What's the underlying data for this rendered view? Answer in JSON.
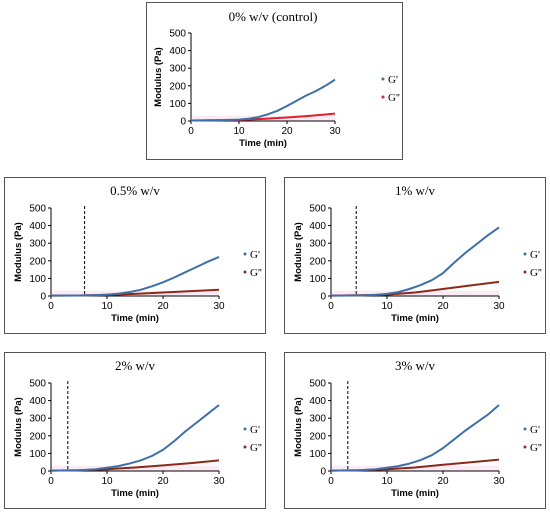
{
  "chart_data": [
    {
      "type": "line",
      "title": "0% w/v (control)",
      "xlabel": "Time (min)",
      "ylabel": "Modulus (Pa)",
      "xlim": [
        0,
        30
      ],
      "ylim": [
        0,
        500
      ],
      "xticks": [
        "0",
        "10",
        "20",
        "30"
      ],
      "yticks": [
        "0",
        "100",
        "200",
        "300",
        "400",
        "500"
      ],
      "gel_point": null,
      "legend_position": "right",
      "series": [
        {
          "name": "G'",
          "color": "#3e6fa8",
          "x": [
            0,
            5,
            8,
            10,
            12,
            14,
            16,
            18,
            20,
            22,
            24,
            26,
            28,
            30
          ],
          "values": [
            3,
            4,
            6,
            8,
            13,
            22,
            38,
            58,
            85,
            115,
            145,
            170,
            200,
            235
          ]
        },
        {
          "name": "G''",
          "color": "#e0202a",
          "x": [
            0,
            5,
            10,
            15,
            20,
            25,
            30
          ],
          "values": [
            3,
            4,
            6,
            12,
            20,
            30,
            42
          ]
        }
      ]
    },
    {
      "type": "line",
      "title": "0.5% w/v",
      "xlabel": "Time (min)",
      "ylabel": "Modulus (Pa)",
      "xlim": [
        0,
        30
      ],
      "ylim": [
        0,
        500
      ],
      "xticks": [
        "0",
        "10",
        "20",
        "30"
      ],
      "yticks": [
        "0",
        "100",
        "200",
        "300",
        "400",
        "500"
      ],
      "gel_point": 6,
      "legend_position": "right",
      "series": [
        {
          "name": "G'",
          "color": "#3e6fa8",
          "x": [
            0,
            5,
            8,
            10,
            12,
            14,
            16,
            18,
            20,
            22,
            24,
            26,
            28,
            30
          ],
          "values": [
            2,
            3,
            5,
            8,
            13,
            22,
            35,
            55,
            78,
            105,
            135,
            165,
            195,
            222
          ]
        },
        {
          "name": "G''",
          "color": "#8b2a1a",
          "x": [
            0,
            5,
            10,
            15,
            20,
            25,
            30
          ],
          "values": [
            2,
            3,
            6,
            12,
            20,
            28,
            36
          ]
        }
      ]
    },
    {
      "type": "line",
      "title": "1% w/v",
      "xlabel": "Time (min)",
      "ylabel": "Modulus (Pa)",
      "xlim": [
        0,
        30
      ],
      "ylim": [
        0,
        500
      ],
      "xticks": [
        "0",
        "10",
        "20",
        "30"
      ],
      "yticks": [
        "0",
        "100",
        "200",
        "300",
        "400",
        "500"
      ],
      "gel_point": 4.5,
      "legend_position": "right",
      "series": [
        {
          "name": "G'",
          "color": "#3e6fa8",
          "x": [
            0,
            5,
            8,
            10,
            12,
            14,
            16,
            18,
            20,
            22,
            24,
            26,
            28,
            30
          ],
          "values": [
            2,
            3,
            6,
            12,
            22,
            40,
            62,
            90,
            130,
            190,
            245,
            295,
            345,
            390
          ]
        },
        {
          "name": "G''",
          "color": "#8b2a1a",
          "x": [
            0,
            5,
            10,
            15,
            20,
            25,
            30
          ],
          "values": [
            2,
            4,
            8,
            20,
            40,
            60,
            80
          ]
        }
      ]
    },
    {
      "type": "line",
      "title": "2% w/v",
      "xlabel": "Time (min)",
      "ylabel": "Modulus (Pa)",
      "xlim": [
        0,
        30
      ],
      "ylim": [
        0,
        500
      ],
      "xticks": [
        "0",
        "10",
        "20",
        "30"
      ],
      "yticks": [
        "0",
        "100",
        "200",
        "300",
        "400",
        "500"
      ],
      "gel_point": 3,
      "legend_position": "right",
      "series": [
        {
          "name": "G'",
          "color": "#3e6fa8",
          "x": [
            0,
            5,
            8,
            10,
            12,
            14,
            16,
            18,
            20,
            22,
            24,
            26,
            28,
            30
          ],
          "values": [
            2,
            4,
            10,
            18,
            28,
            42,
            60,
            85,
            120,
            170,
            225,
            275,
            325,
            375
          ]
        },
        {
          "name": "G''",
          "color": "#8b2a1a",
          "x": [
            0,
            5,
            10,
            15,
            20,
            25,
            30
          ],
          "values": [
            2,
            4,
            10,
            20,
            32,
            45,
            60
          ]
        }
      ]
    },
    {
      "type": "line",
      "title": "3% w/v",
      "xlabel": "Time (min)",
      "ylabel": "Modulus (Pa)",
      "xlim": [
        0,
        30
      ],
      "ylim": [
        0,
        500
      ],
      "xticks": [
        "0",
        "10",
        "20",
        "30"
      ],
      "yticks": [
        "0",
        "100",
        "200",
        "300",
        "400",
        "500"
      ],
      "gel_point": 3,
      "legend_position": "right",
      "series": [
        {
          "name": "G'",
          "color": "#3e6fa8",
          "x": [
            0,
            5,
            8,
            10,
            12,
            14,
            16,
            18,
            20,
            22,
            24,
            26,
            28,
            30
          ],
          "values": [
            2,
            4,
            10,
            18,
            28,
            42,
            62,
            90,
            130,
            180,
            230,
            275,
            320,
            375
          ]
        },
        {
          "name": "G''",
          "color": "#8b2a1a",
          "x": [
            0,
            5,
            10,
            15,
            20,
            25,
            30
          ],
          "values": [
            2,
            4,
            10,
            20,
            35,
            50,
            65
          ]
        }
      ]
    }
  ]
}
